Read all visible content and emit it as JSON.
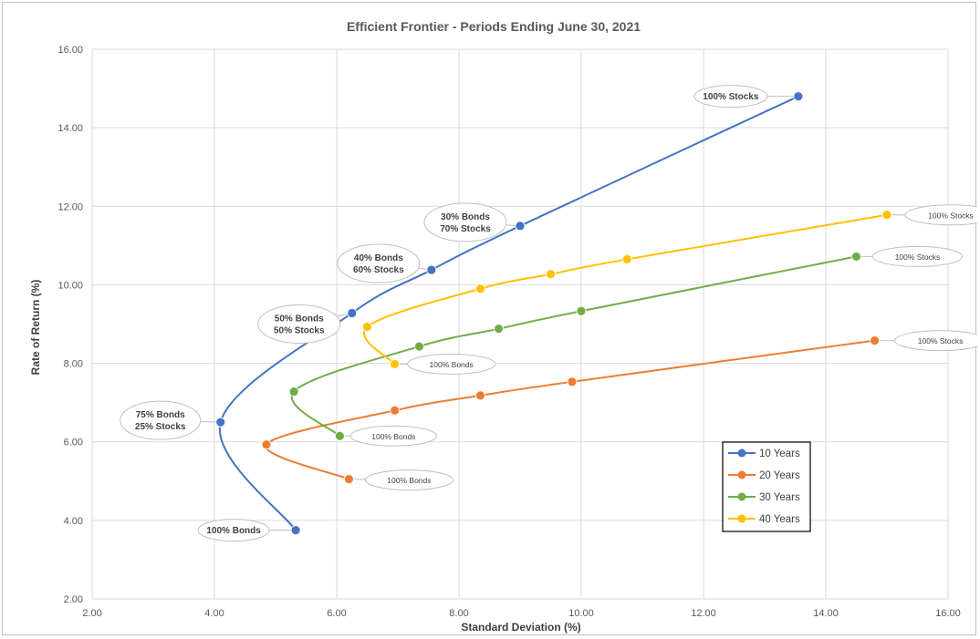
{
  "chart_data": {
    "type": "line",
    "title": "Efficient Frontier - Periods Ending June 30, 2021",
    "xlabel": "Standard Deviation (%)",
    "ylabel": "Rate of Return (%)",
    "xlim": [
      2,
      16
    ],
    "ylim": [
      2,
      16
    ],
    "x_ticks": [
      "2.00",
      "4.00",
      "6.00",
      "8.00",
      "10.00",
      "12.00",
      "14.00",
      "16.00"
    ],
    "y_ticks": [
      "2.00",
      "4.00",
      "6.00",
      "8.00",
      "10.00",
      "12.00",
      "14.00",
      "16.00"
    ],
    "grid": true,
    "legend_position": "bottom-right",
    "series": [
      {
        "name": "10 Years",
        "color": "#4472c4",
        "points": [
          [
            5.33,
            3.75
          ],
          [
            4.1,
            6.5
          ],
          [
            6.25,
            9.28
          ],
          [
            7.55,
            10.38
          ],
          [
            9.0,
            11.5
          ],
          [
            13.55,
            14.8
          ]
        ]
      },
      {
        "name": "20 Years",
        "color": "#ed7d31",
        "points": [
          [
            6.2,
            5.05
          ],
          [
            4.85,
            5.93
          ],
          [
            6.95,
            6.8
          ],
          [
            8.35,
            7.18
          ],
          [
            9.85,
            7.53
          ],
          [
            14.8,
            8.58
          ]
        ]
      },
      {
        "name": "30 Years",
        "color": "#70ad47",
        "points": [
          [
            6.05,
            6.15
          ],
          [
            5.3,
            7.28
          ],
          [
            7.35,
            8.43
          ],
          [
            8.65,
            8.88
          ],
          [
            10.0,
            9.33
          ],
          [
            14.5,
            10.72
          ]
        ]
      },
      {
        "name": "40 Years",
        "color": "#ffc000",
        "points": [
          [
            6.95,
            7.98
          ],
          [
            6.5,
            8.93
          ],
          [
            8.35,
            9.9
          ],
          [
            9.5,
            10.27
          ],
          [
            10.75,
            10.65
          ],
          [
            15.0,
            11.78
          ]
        ]
      }
    ],
    "annotations": [
      {
        "series": "10 Years",
        "point": 0,
        "lines": [
          "100% Bonds"
        ],
        "style": "bold"
      },
      {
        "series": "10 Years",
        "point": 1,
        "lines": [
          "75% Bonds",
          "25% Stocks"
        ],
        "style": "bold"
      },
      {
        "series": "10 Years",
        "point": 2,
        "lines": [
          "50% Bonds",
          "50% Stocks"
        ],
        "style": "bold"
      },
      {
        "series": "10 Years",
        "point": 3,
        "lines": [
          "40% Bonds",
          "60% Stocks"
        ],
        "style": "bold"
      },
      {
        "series": "10 Years",
        "point": 4,
        "lines": [
          "30% Bonds",
          "70% Stocks"
        ],
        "style": "bold"
      },
      {
        "series": "10 Years",
        "point": 5,
        "lines": [
          "100% Stocks"
        ],
        "style": "bold"
      },
      {
        "series": "20 Years",
        "point": 0,
        "lines": [
          "100% Bonds"
        ],
        "style": "small"
      },
      {
        "series": "20 Years",
        "point": 5,
        "lines": [
          "100% Stocks"
        ],
        "style": "small"
      },
      {
        "series": "30 Years",
        "point": 0,
        "lines": [
          "100% Bonds"
        ],
        "style": "small"
      },
      {
        "series": "30 Years",
        "point": 5,
        "lines": [
          "100% Stocks"
        ],
        "style": "small"
      },
      {
        "series": "40 Years",
        "point": 0,
        "lines": [
          "100% Bonds"
        ],
        "style": "small"
      },
      {
        "series": "40 Years",
        "point": 5,
        "lines": [
          "100% Stocks"
        ],
        "style": "small"
      }
    ]
  }
}
